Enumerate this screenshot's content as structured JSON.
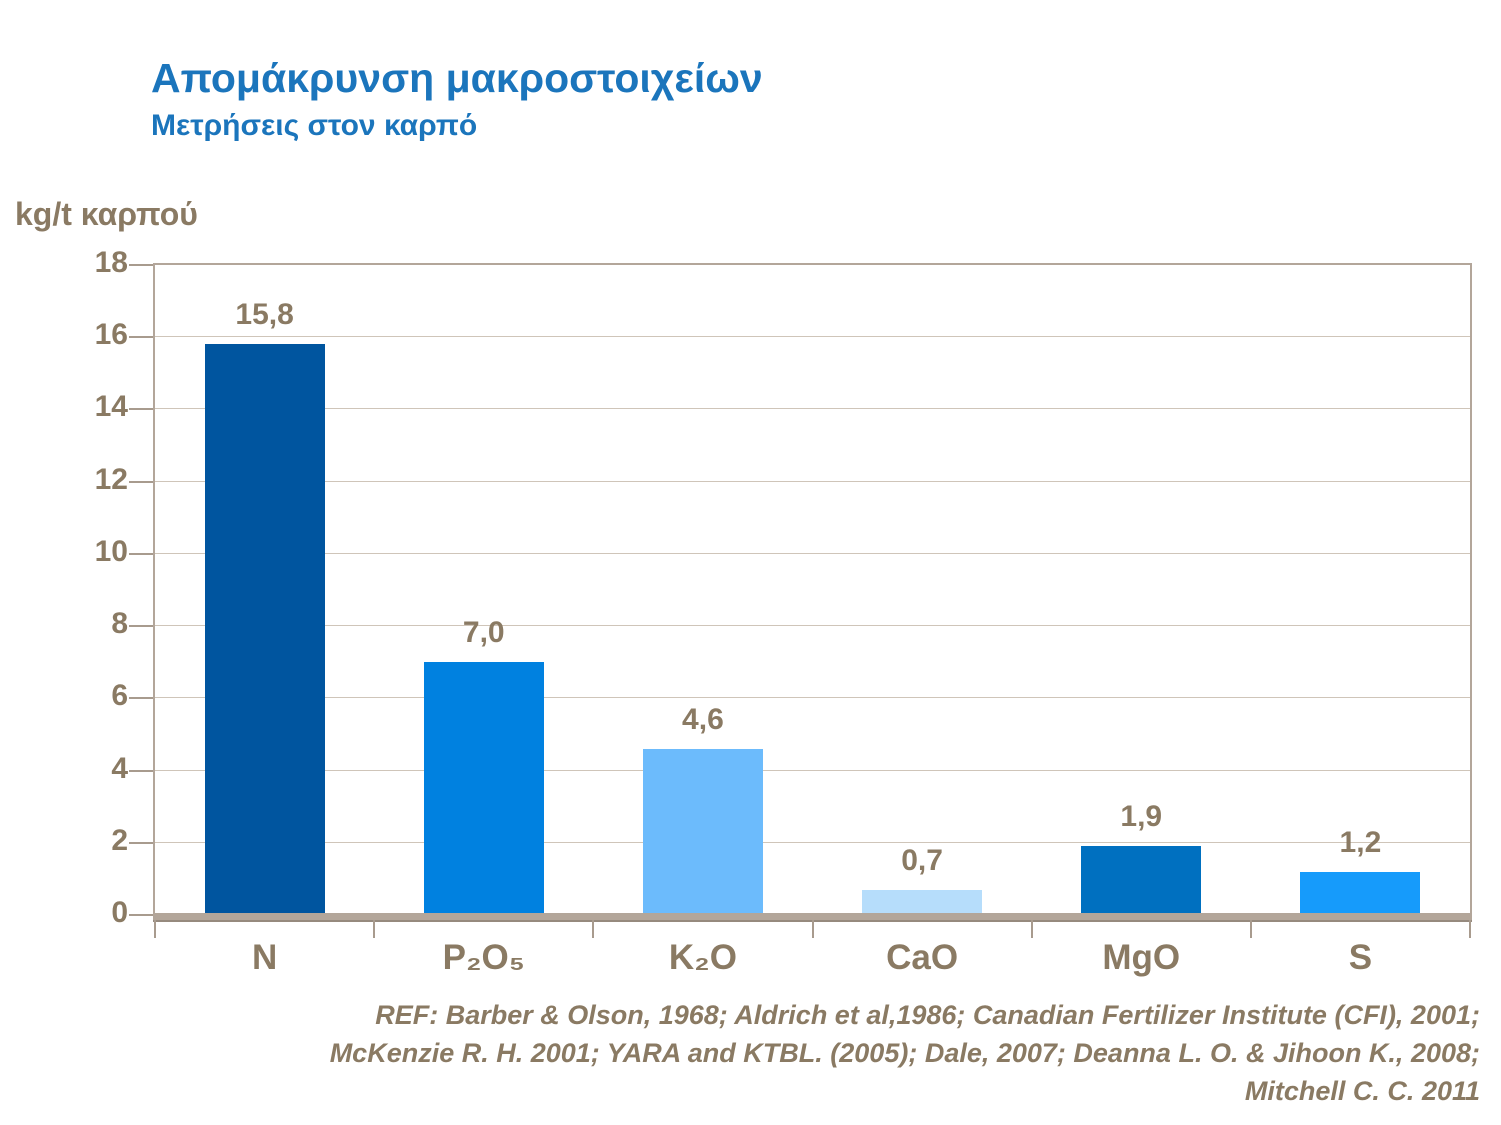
{
  "header": {
    "title": "Απομάκρυνση μακροστοιχείων",
    "subtitle": "Μετρήσεις στον καρπό"
  },
  "chart_data": {
    "type": "bar",
    "title": "Απομάκρυνση μακροστοιχείων",
    "subtitle": "Μετρήσεις στον καρπό",
    "xlabel": "",
    "ylabel": "kg/t καρπού",
    "ylim": [
      0,
      18
    ],
    "yticks": [
      0,
      2,
      4,
      6,
      8,
      10,
      12,
      14,
      16,
      18
    ],
    "grid": true,
    "legend_position": "none",
    "categories": [
      "N",
      "P₂O₅",
      "K₂O",
      "CaO",
      "MgO",
      "S"
    ],
    "values": [
      15.8,
      7.0,
      4.6,
      0.7,
      1.9,
      1.2
    ],
    "value_labels": [
      "15,8",
      "7,0",
      "4,6",
      "0,7",
      "1,9",
      "1,2"
    ],
    "bar_colors": [
      "#00559f",
      "#0081e0",
      "#6cbbfc",
      "#b6ddfb",
      "#0070c0",
      "#169bfb"
    ]
  },
  "footer": {
    "ref_line1": "REF: Barber & Olson, 1968; Aldrich et al,1986; Canadian Fertilizer Institute (CFI), 2001;",
    "ref_line2": "McKenzie R. H. 2001; YARA and KTBL. (2005); Dale, 2007; Deanna L. O. & Jihoon K.,  2008;",
    "ref_line3": "Mitchell C. C. 2011"
  },
  "colors": {
    "title_blue": "#1b75bc",
    "text_brown": "#8a7a63",
    "axis_tan": "#b3a69a",
    "grid_tan": "#cfc5b9"
  }
}
